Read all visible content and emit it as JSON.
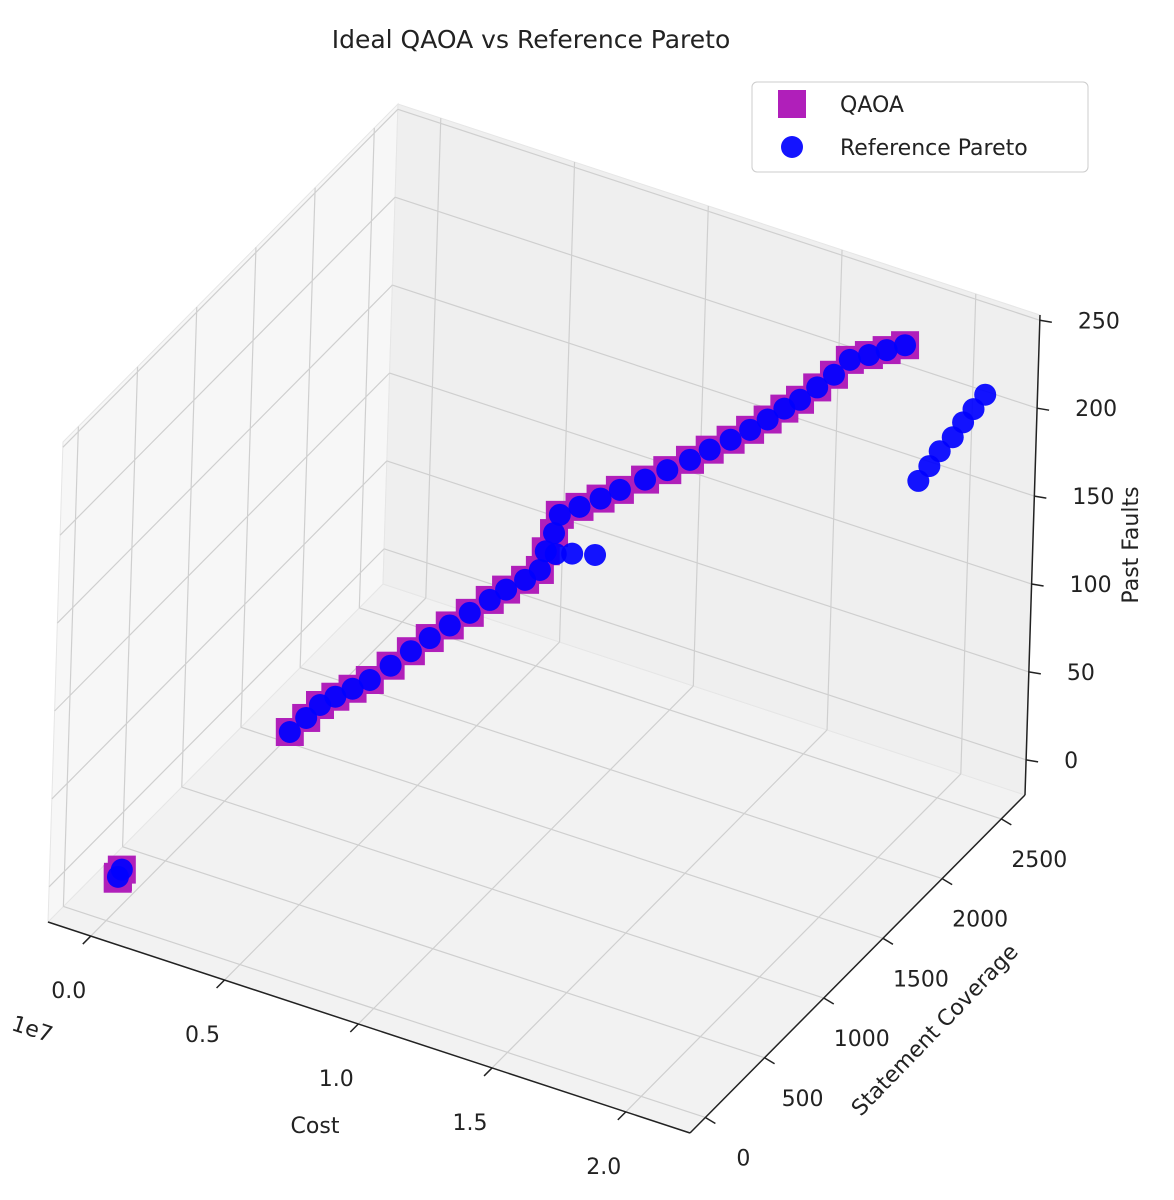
{
  "chart_data": {
    "type": "scatter3d",
    "title": "Ideal QAOA vs Reference Pareto",
    "x_label": "Cost",
    "y_label": "Statement Coverage",
    "z_label": "Past Faults",
    "x_offset_label": "1e7",
    "xlim": [
      -1600000,
      22400000
    ],
    "ylim": [
      -130,
      2700
    ],
    "zlim": [
      -20,
      253
    ],
    "xticks": [
      {
        "value": 0,
        "label": "0.0"
      },
      {
        "value": 5000000,
        "label": "0.5"
      },
      {
        "value": 10000000,
        "label": "1.0"
      },
      {
        "value": 15000000,
        "label": "1.5"
      },
      {
        "value": 20000000,
        "label": "2.0"
      }
    ],
    "yticks": [
      0,
      500,
      1000,
      1500,
      2000,
      2500
    ],
    "zticks": [
      0,
      50,
      100,
      150,
      200,
      250
    ],
    "grid": true,
    "legend": "upper right",
    "series": [
      {
        "name": "QAOA",
        "color": "#b01fba",
        "marker": "square",
        "x": [
          300000,
          350000,
          250000,
          2050000,
          2500000,
          2860000,
          3300000,
          3800000,
          4280000,
          4800000,
          5300000,
          5750000,
          6200000,
          6650000,
          7090000,
          7500000,
          8000000,
          8380000,
          8500000,
          8700000,
          8830000,
          9400000,
          10000000,
          10540000,
          11200000,
          11800000,
          12390000,
          12900000,
          13450000,
          13960000,
          14500000,
          15000000,
          15480000,
          16000000,
          16500000,
          16960000,
          17600000,
          18200000,
          18820000
        ],
        "y": [
          20,
          40,
          30,
          1067,
          1100,
          1132,
          1160,
          1190,
          1225,
          1280,
          1335,
          1390,
          1455,
          1520,
          1587,
          1630,
          1675,
          1712,
          1730,
          1750,
          1765,
          1800,
          1840,
          1879,
          1940,
          1990,
          2046,
          2095,
          2145,
          2192,
          2215,
          2240,
          2261,
          2285,
          2310,
          2336,
          2350,
          2362,
          2375
        ],
        "z": [
          5,
          8,
          3,
          25,
          33,
          40,
          45,
          50,
          55,
          62,
          69,
          75,
          80,
          85,
          90,
          95,
          100,
          105,
          115,
          125,
          135,
          140,
          145,
          150,
          155,
          160,
          165,
          170,
          175,
          180,
          187,
          194,
          200,
          208,
          216,
          225,
          230,
          235,
          240
        ]
      },
      {
        "name": "Reference Pareto",
        "color": "#0000ff",
        "marker": "circle",
        "x": [
          300000,
          350000,
          2050000,
          2500000,
          2860000,
          3300000,
          3800000,
          4280000,
          4800000,
          5300000,
          5750000,
          6200000,
          6650000,
          7090000,
          7500000,
          8000000,
          8380000,
          8500000,
          8700000,
          8830000,
          9000000,
          9500000,
          10230000,
          9400000,
          10000000,
          10540000,
          11200000,
          11800000,
          12390000,
          12900000,
          13450000,
          13960000,
          14500000,
          15000000,
          15480000,
          16000000,
          16500000,
          16960000,
          17600000,
          18200000,
          18820000,
          19180000,
          19600000,
          20000000,
          20500000,
          20900000,
          21300000,
          21750000
        ],
        "y": [
          20,
          40,
          1067,
          1100,
          1132,
          1160,
          1190,
          1225,
          1280,
          1335,
          1390,
          1455,
          1520,
          1587,
          1630,
          1675,
          1712,
          1730,
          1750,
          1765,
          1700,
          1725,
          1753,
          1800,
          1840,
          1879,
          1940,
          1990,
          2046,
          2095,
          2145,
          2192,
          2215,
          2240,
          2261,
          2285,
          2310,
          2336,
          2350,
          2362,
          2375,
          2443,
          2436,
          2428,
          2420,
          2412,
          2405,
          2397
        ],
        "z": [
          5,
          8,
          25,
          33,
          40,
          45,
          50,
          55,
          62,
          69,
          75,
          80,
          85,
          90,
          95,
          100,
          105,
          115,
          125,
          135,
          118,
          119,
          120,
          140,
          145,
          150,
          155,
          160,
          165,
          170,
          175,
          180,
          187,
          194,
          200,
          208,
          216,
          225,
          230,
          235,
          240,
          160,
          171,
          182,
          193,
          204,
          214,
          225
        ]
      }
    ]
  }
}
